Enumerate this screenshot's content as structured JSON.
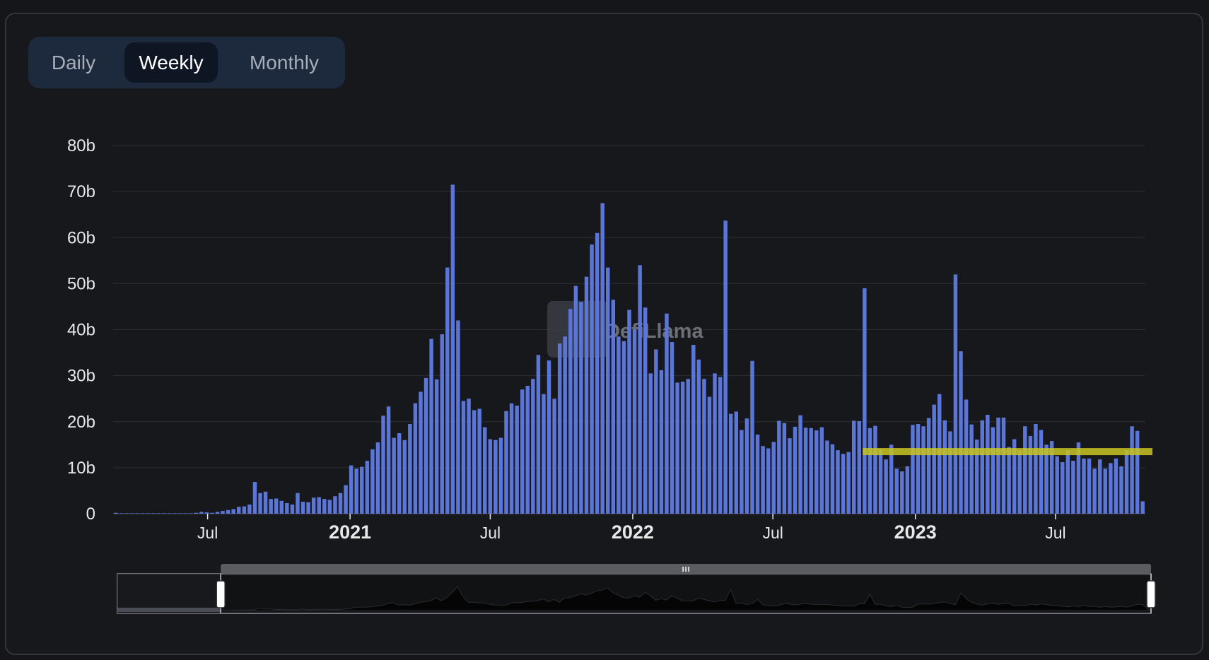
{
  "toggle": {
    "options": [
      "Daily",
      "Weekly",
      "Monthly"
    ],
    "selected": "Weekly"
  },
  "watermark": "DefiLlama",
  "colors": {
    "bar": "#5b76d6",
    "highlight": "#c9c423",
    "background": "#17181c",
    "toggle_bg": "#1d2a3e",
    "toggle_active": "#0f1623"
  },
  "chart_data": {
    "type": "bar",
    "x_start": "2020-03-01",
    "x_end": "2023-10-25",
    "x_ticks": [
      {
        "label": "Jul",
        "date": "2020-07-01",
        "year": false
      },
      {
        "label": "2021",
        "date": "2021-01-01",
        "year": true
      },
      {
        "label": "Jul",
        "date": "2021-07-01",
        "year": false
      },
      {
        "label": "2022",
        "date": "2022-01-01",
        "year": true
      },
      {
        "label": "Jul",
        "date": "2022-07-01",
        "year": false
      },
      {
        "label": "2023",
        "date": "2023-01-01",
        "year": true
      },
      {
        "label": "Jul",
        "date": "2023-07-01",
        "year": false
      }
    ],
    "y_ticks": [
      "0",
      "10b",
      "20b",
      "30b",
      "40b",
      "50b",
      "60b",
      "70b",
      "80b"
    ],
    "ylim": [
      0,
      80
    ],
    "y_unit": "billions",
    "grid": true,
    "values": [
      0.2,
      0.1,
      0.1,
      0.1,
      0.1,
      0.1,
      0.1,
      0.1,
      0.1,
      0.1,
      0.1,
      0.1,
      0.1,
      0.1,
      0.1,
      0.2,
      0.4,
      0.3,
      0.2,
      0.4,
      0.6,
      0.8,
      1.0,
      1.5,
      1.6,
      2.0,
      6.9,
      4.5,
      4.8,
      3.2,
      3.3,
      2.8,
      2.3,
      2.0,
      4.5,
      2.6,
      2.5,
      3.5,
      3.6,
      3.2,
      3.0,
      3.8,
      4.5,
      6.2,
      10.5,
      9.8,
      10.2,
      11.5,
      14.0,
      15.5,
      21.3,
      23.3,
      16.5,
      17.5,
      16.0,
      19.5,
      24.0,
      26.5,
      29.5,
      38.0,
      29.2,
      39.0,
      53.5,
      71.5,
      42.0,
      24.5,
      25.0,
      22.5,
      22.8,
      18.8,
      16.2,
      16.0,
      16.5,
      22.3,
      24.0,
      23.5,
      27.0,
      27.8,
      29.3,
      34.5,
      26.0,
      33.3,
      25.0,
      37.0,
      38.5,
      44.5,
      49.5,
      46.0,
      51.5,
      58.5,
      61.0,
      67.5,
      53.5,
      46.5,
      38.5,
      37.5,
      44.3,
      40.0,
      54.0,
      44.8,
      30.5,
      35.7,
      31.2,
      43.5,
      37.3,
      28.5,
      28.7,
      29.3,
      36.7,
      33.5,
      29.3,
      25.4,
      30.5,
      29.7,
      63.7,
      21.7,
      22.2,
      18.2,
      20.7,
      33.2,
      17.2,
      14.7,
      14.2,
      15.6,
      20.2,
      19.7,
      16.4,
      18.9,
      21.4,
      18.7,
      18.6,
      18.1,
      18.8,
      15.9,
      15.1,
      13.8,
      13.0,
      13.4,
      20.2,
      20.1,
      49.0,
      18.6,
      19.1,
      14.0,
      11.8,
      15.0,
      9.8,
      9.2,
      10.3,
      19.3,
      19.5,
      19.0,
      20.8,
      23.7,
      26.0,
      20.3,
      17.9,
      52.0,
      35.3,
      24.8,
      19.4,
      16.1,
      20.3,
      21.5,
      18.8,
      20.9,
      20.9,
      14.5,
      16.2,
      13.8,
      19.0,
      16.9,
      19.5,
      18.2,
      15.0,
      15.8,
      12.5,
      11.2,
      13.8,
      11.5,
      15.5,
      12.0,
      12.0,
      9.8,
      11.8,
      9.8,
      11.0,
      12.0,
      10.3,
      13.8,
      19.0,
      18.0,
      2.7
    ],
    "highlight_line": {
      "from": "2022-10-25",
      "to": "2023-10-25",
      "y": 13.5
    }
  },
  "range_slider": {
    "start_date": "2020-03-01",
    "end_date": "2023-10-25",
    "selection_start": 0.1,
    "selection_end": 1.0
  }
}
